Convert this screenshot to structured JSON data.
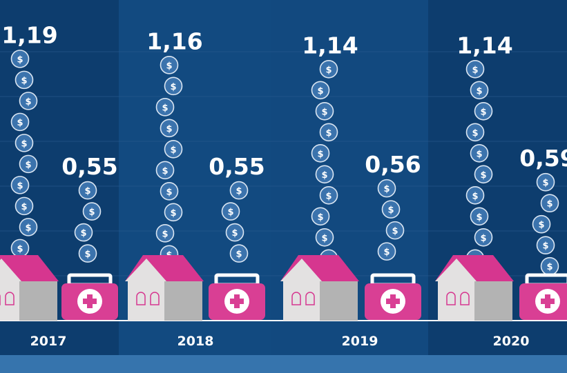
{
  "chart_data": {
    "type": "bar",
    "title": "",
    "xlabel": "",
    "ylabel": "",
    "categories": [
      "2017",
      "2018",
      "2019",
      "2020"
    ],
    "series": [
      {
        "name": "house",
        "icon": "house-icon",
        "values": [
          1.19,
          1.16,
          1.14,
          1.14
        ],
        "labels": [
          "1,19",
          "1,16",
          "1,14",
          "1,14"
        ]
      },
      {
        "name": "health",
        "icon": "medical-kit-icon",
        "values": [
          0.55,
          0.55,
          0.56,
          0.59
        ],
        "labels": [
          "0,55",
          "0,55",
          "0,56",
          "0,59"
        ]
      }
    ],
    "coin_symbol": "$"
  },
  "colors": {
    "band_dark": "#0d3d6e",
    "band_light": "#124a80",
    "bottom_strip": "#3674ad",
    "coin": "#3b73ad",
    "roof": "#d6368f",
    "kit": "#d93f94",
    "house_wall": "#e3e1e1",
    "house_side": "#b3b3b3"
  }
}
